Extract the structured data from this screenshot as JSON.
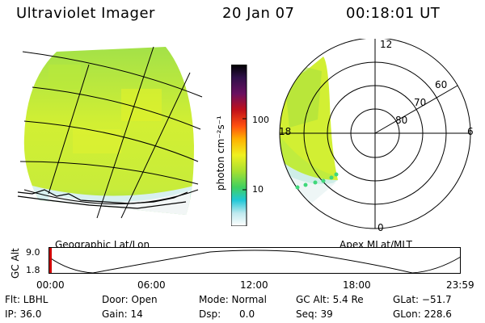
{
  "header": {
    "instrument": "Ultraviolet Imager",
    "date": "20 Jan 07",
    "time": "00:18:01 UT"
  },
  "colorbar": {
    "unit_label": "photon cm⁻²s⁻¹",
    "ticks": [
      "100",
      "10"
    ]
  },
  "left_panel": {
    "label": "Geographic Lat/Lon"
  },
  "right_panel": {
    "label": "Apex MLat/MLT",
    "mlt_labels": [
      "12",
      "18",
      "6",
      "0"
    ],
    "lat_labels": [
      "60",
      "70",
      "80"
    ]
  },
  "timeline": {
    "ylabel": "GC Alt",
    "y_ticks": [
      "9.0",
      "1.8"
    ],
    "x_ticks": [
      "00:00",
      "06:00",
      "12:00",
      "18:00",
      "23:59"
    ]
  },
  "info": {
    "filter": "Flt: LBHL",
    "ip": "IP: 36.0",
    "door": "Door: Open",
    "gain": "Gain: 14",
    "mode": "Mode: Normal",
    "dsp": "Dsp:      0.0",
    "gc_alt": "GC Alt: 5.4 Re",
    "seq": "Seq: 39",
    "glat": "GLat: −51.7",
    "glon": "GLon: 228.6"
  }
}
